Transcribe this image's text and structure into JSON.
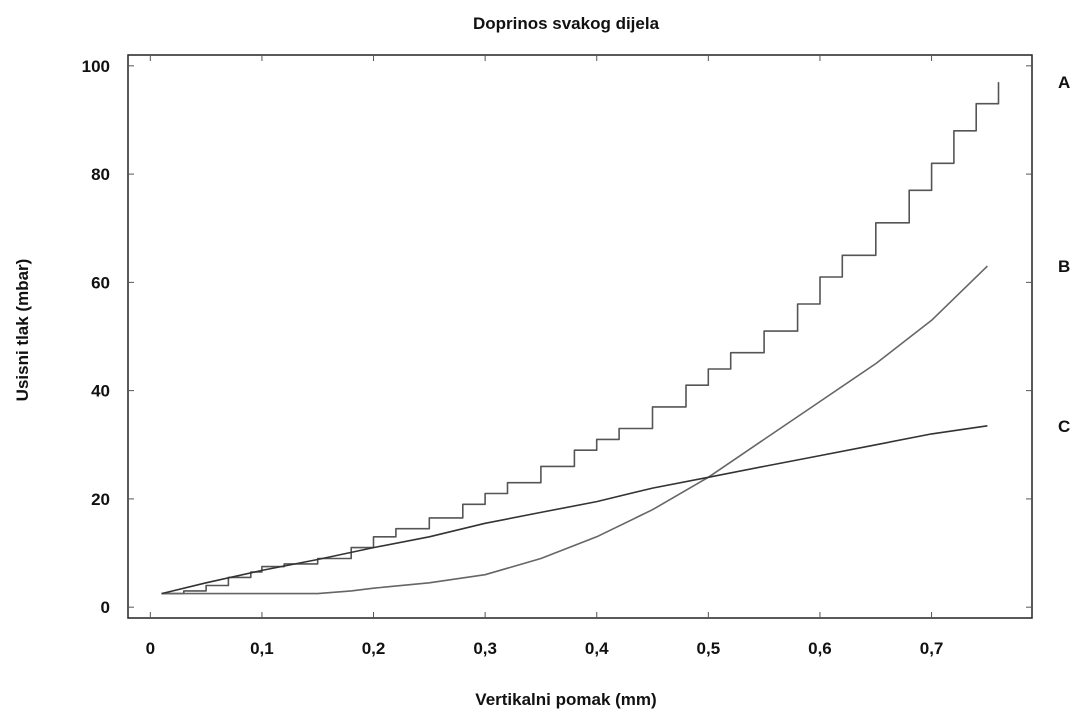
{
  "chart_data": {
    "type": "line",
    "title": "Doprinos svakog dijela",
    "xlabel": "Vertikalni pomak (mm)",
    "ylabel": "Usisni tlak (mbar)",
    "xlim": [
      -0.02,
      0.79
    ],
    "ylim": [
      -2,
      102
    ],
    "grid": false,
    "x_ticks": [
      {
        "value": 0,
        "label": "0"
      },
      {
        "value": 0.1,
        "label": "0,1"
      },
      {
        "value": 0.2,
        "label": "0,2"
      },
      {
        "value": 0.3,
        "label": "0,3"
      },
      {
        "value": 0.4,
        "label": "0,4"
      },
      {
        "value": 0.5,
        "label": "0,5"
      },
      {
        "value": 0.6,
        "label": "0,6"
      },
      {
        "value": 0.7,
        "label": "0,7"
      }
    ],
    "y_ticks": [
      {
        "value": 0,
        "label": "0"
      },
      {
        "value": 20,
        "label": "20"
      },
      {
        "value": 40,
        "label": "40"
      },
      {
        "value": 60,
        "label": "60"
      },
      {
        "value": 80,
        "label": "80"
      },
      {
        "value": 100,
        "label": "100"
      }
    ],
    "series": [
      {
        "name": "A",
        "color": "#555555",
        "step": true,
        "x": [
          0.01,
          0.03,
          0.05,
          0.07,
          0.09,
          0.1,
          0.12,
          0.15,
          0.18,
          0.2,
          0.22,
          0.25,
          0.28,
          0.3,
          0.32,
          0.35,
          0.38,
          0.4,
          0.42,
          0.45,
          0.48,
          0.5,
          0.52,
          0.55,
          0.58,
          0.6,
          0.62,
          0.65,
          0.68,
          0.7,
          0.72,
          0.74,
          0.76
        ],
        "y": [
          2.5,
          3,
          4,
          5.5,
          6.5,
          7.5,
          8,
          9,
          11,
          13,
          14.5,
          16.5,
          19,
          21,
          23,
          26,
          29,
          31,
          33,
          37,
          41,
          44,
          47,
          51,
          56,
          61,
          65,
          71,
          77,
          82,
          88,
          93,
          97
        ]
      },
      {
        "name": "B",
        "color": "#666666",
        "step": false,
        "x": [
          0.01,
          0.05,
          0.1,
          0.15,
          0.18,
          0.2,
          0.25,
          0.3,
          0.35,
          0.4,
          0.45,
          0.5,
          0.55,
          0.6,
          0.65,
          0.7,
          0.75
        ],
        "y": [
          2.5,
          2.5,
          2.5,
          2.5,
          3,
          3.5,
          4.5,
          6,
          9,
          13,
          18,
          24,
          31,
          38,
          45,
          53,
          63
        ]
      },
      {
        "name": "C",
        "color": "#333333",
        "step": false,
        "x": [
          0.01,
          0.05,
          0.1,
          0.15,
          0.2,
          0.25,
          0.3,
          0.35,
          0.4,
          0.45,
          0.5,
          0.55,
          0.6,
          0.65,
          0.7,
          0.75
        ],
        "y": [
          2.5,
          4.5,
          6.8,
          8.8,
          11,
          13,
          15.5,
          17.5,
          19.5,
          22,
          24,
          26,
          28,
          30,
          32,
          33.5
        ]
      }
    ]
  }
}
